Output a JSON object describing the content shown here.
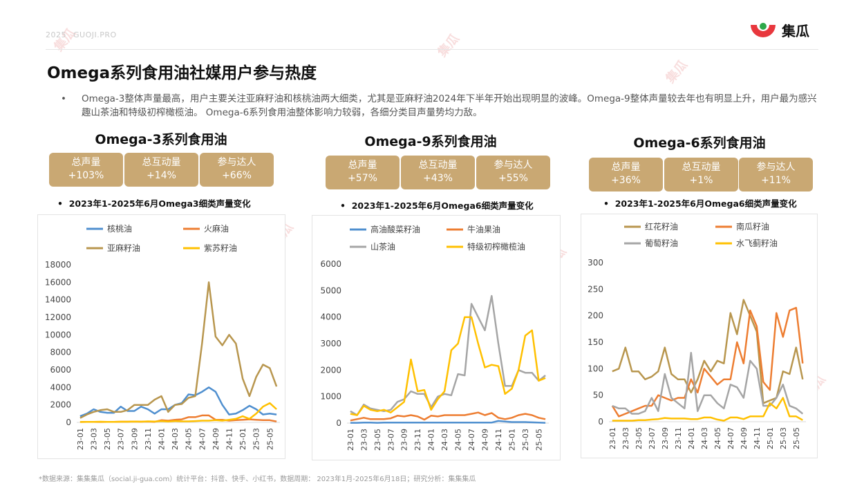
{
  "header": {
    "year": "2025",
    "site": "GUOJI.PRO",
    "logo_text": "集瓜",
    "watermark": "集瓜"
  },
  "page_title": "Omega系列食用油社媒用户参与热度",
  "summary": "Omega-3整体声量最高，用户主要关注亚麻籽油和核桃油两大细类，尤其是亚麻籽油2024年下半年开始出现明显的波峰。Omega-9整体声量较去年也有明显上升，用户最为感兴趣山茶油和特级初榨橄榄油。 Omega-6系列食用油整体影响力较弱，各细分类目声量势均力敌。",
  "columns": [
    {
      "title": "Omega-3系列食用油",
      "kpis": [
        {
          "label": "总声量",
          "value": "+103%"
        },
        {
          "label": "总互动量",
          "value": "+14%"
        },
        {
          "label": "参与达人",
          "value": "+66%"
        }
      ],
      "subtitle": "2023年1-2025年6月Omega3细类声量变化"
    },
    {
      "title": "Omega-9系列食用油",
      "kpis": [
        {
          "label": "总声量",
          "value": "+57%"
        },
        {
          "label": "总互动量",
          "value": "+43%"
        },
        {
          "label": "参与达人",
          "value": "+55%"
        }
      ],
      "subtitle": "2023年1-2025年6月Omega6细类声量变化"
    },
    {
      "title": "Omega-6系列食用油",
      "kpis": [
        {
          "label": "总声量",
          "value": "+36%"
        },
        {
          "label": "总互动量",
          "value": "+1%"
        },
        {
          "label": "参与达人",
          "value": "+11%"
        }
      ],
      "subtitle": "2023年1-2025年6月Omega6细类声量变化"
    }
  ],
  "footnote": "*数据来源：集集集瓜（social.ji-gua.com）统计平台：抖音、快手、小红书，数据周期： 2023年1月-2025年6月18日；研究分析：集集集瓜",
  "chart_data": [
    {
      "type": "line",
      "x": [
        "23-01",
        "23-02",
        "23-03",
        "23-04",
        "23-05",
        "23-06",
        "23-07",
        "23-08",
        "23-09",
        "23-10",
        "23-11",
        "23-12",
        "24-01",
        "24-02",
        "24-03",
        "24-04",
        "24-05",
        "24-06",
        "24-07",
        "24-08",
        "24-09",
        "24-10",
        "24-11",
        "24-12",
        "25-01",
        "25-02",
        "25-03",
        "25-04",
        "25-05",
        "25-06"
      ],
      "xticks": [
        "23-01",
        "23-03",
        "23-05",
        "23-07",
        "23-09",
        "23-11",
        "24-01",
        "24-03",
        "24-05",
        "24-07",
        "24-09",
        "24-11",
        "25-01",
        "25-03",
        "25-05"
      ],
      "ylim": [
        0,
        18000
      ],
      "yticks": [
        0,
        2000,
        4000,
        6000,
        8000,
        10000,
        12000,
        14000,
        16000,
        18000
      ],
      "series": [
        {
          "name": "核桃油",
          "color": "#4f8fcf",
          "values": [
            700,
            1000,
            1500,
            1200,
            1100,
            1100,
            1800,
            1300,
            1300,
            1800,
            1500,
            1000,
            1500,
            1500,
            2000,
            2200,
            3200,
            3100,
            3500,
            4000,
            3500,
            2000,
            900,
            1000,
            1400,
            1900,
            1500,
            900,
            1000,
            900
          ]
        },
        {
          "name": "火麻油",
          "color": "#ed7d31",
          "values": [
            50,
            60,
            60,
            50,
            60,
            60,
            80,
            80,
            100,
            80,
            100,
            60,
            250,
            200,
            300,
            350,
            600,
            600,
            800,
            800,
            300,
            300,
            200,
            250,
            300,
            350,
            300,
            250,
            250,
            100
          ]
        },
        {
          "name": "亚麻籽油",
          "color": "#b8964e",
          "values": [
            500,
            900,
            1200,
            1400,
            1500,
            1200,
            1200,
            1400,
            2000,
            2000,
            2000,
            2600,
            3000,
            1200,
            2000,
            2100,
            2800,
            3000,
            9000,
            16000,
            9800,
            8800,
            10000,
            9000,
            5000,
            3000,
            5200,
            6600,
            6200,
            4100
          ]
        },
        {
          "name": "紫苏籽油",
          "color": "#ffc000",
          "values": [
            50,
            60,
            60,
            80,
            60,
            60,
            80,
            80,
            100,
            80,
            120,
            100,
            150,
            100,
            150,
            120,
            120,
            150,
            200,
            200,
            250,
            200,
            300,
            400,
            700,
            400,
            1000,
            1800,
            2200,
            1500
          ]
        }
      ]
    },
    {
      "type": "line",
      "x": [
        "23-01",
        "23-02",
        "23-03",
        "23-04",
        "23-05",
        "23-06",
        "23-07",
        "23-08",
        "23-09",
        "23-10",
        "23-11",
        "23-12",
        "24-01",
        "24-02",
        "24-03",
        "24-04",
        "24-05",
        "24-06",
        "24-07",
        "24-08",
        "24-09",
        "24-10",
        "24-11",
        "24-12",
        "25-01",
        "25-02",
        "25-03",
        "25-04",
        "25-05",
        "25-06"
      ],
      "xticks": [
        "23-01",
        "23-03",
        "23-05",
        "23-07",
        "23-09",
        "23-11",
        "24-01",
        "24-03",
        "24-05",
        "24-07",
        "24-09",
        "24-11",
        "25-01",
        "25-03",
        "25-05"
      ],
      "ylim": [
        0,
        6000
      ],
      "yticks": [
        0,
        1000,
        2000,
        3000,
        4000,
        5000,
        6000
      ],
      "series": [
        {
          "name": "高油酸菜籽油",
          "color": "#4f8fcf",
          "values": [
            10,
            10,
            20,
            20,
            10,
            20,
            20,
            20,
            20,
            20,
            20,
            20,
            20,
            20,
            20,
            20,
            20,
            20,
            20,
            20,
            20,
            20,
            80,
            60,
            40,
            40,
            40,
            30,
            20,
            10
          ]
        },
        {
          "name": "牛油果油",
          "color": "#ed7d31",
          "values": [
            100,
            150,
            200,
            150,
            150,
            150,
            180,
            280,
            250,
            300,
            250,
            130,
            280,
            250,
            300,
            300,
            300,
            300,
            350,
            400,
            300,
            380,
            200,
            150,
            200,
            300,
            350,
            300,
            200,
            150
          ]
        },
        {
          "name": "山茶油",
          "color": "#a5a5a5",
          "values": [
            450,
            300,
            700,
            550,
            500,
            450,
            500,
            800,
            900,
            1200,
            1100,
            1100,
            600,
            1000,
            1100,
            1050,
            1850,
            1800,
            4500,
            4000,
            3500,
            4800,
            3000,
            1400,
            1400,
            2000,
            1900,
            1900,
            1600,
            1800
          ]
        },
        {
          "name": "特级初榨橄榄油",
          "color": "#ffc000",
          "values": [
            350,
            300,
            650,
            500,
            450,
            500,
            400,
            600,
            800,
            2400,
            1200,
            1250,
            500,
            900,
            1200,
            2750,
            3000,
            4000,
            4000,
            3000,
            2100,
            2200,
            2150,
            1100,
            1300,
            2000,
            3300,
            3500,
            1600,
            1700
          ]
        }
      ]
    },
    {
      "type": "line",
      "x": [
        "23-01",
        "23-02",
        "23-03",
        "23-04",
        "23-05",
        "23-06",
        "23-07",
        "23-08",
        "23-09",
        "23-10",
        "23-11",
        "23-12",
        "24-01",
        "24-02",
        "24-03",
        "24-04",
        "24-05",
        "24-06",
        "24-07",
        "24-08",
        "24-09",
        "24-10",
        "24-11",
        "24-12",
        "25-01",
        "25-02",
        "25-03",
        "25-04",
        "25-05",
        "25-06"
      ],
      "xticks": [
        "23-01",
        "23-03",
        "23-05",
        "23-07",
        "23-09",
        "23-11",
        "24-01",
        "24-03",
        "24-05",
        "24-07",
        "24-09",
        "24-11",
        "25-01",
        "25-03",
        "25-05"
      ],
      "ylim": [
        0,
        300
      ],
      "yticks": [
        0,
        50,
        100,
        150,
        200,
        250,
        300
      ],
      "series": [
        {
          "name": "红花籽油",
          "color": "#b8964e",
          "values": [
            95,
            100,
            140,
            95,
            95,
            80,
            85,
            95,
            140,
            90,
            80,
            80,
            55,
            80,
            115,
            95,
            115,
            110,
            205,
            165,
            230,
            200,
            170,
            35,
            40,
            45,
            95,
            90,
            140,
            80
          ]
        },
        {
          "name": "南瓜籽油",
          "color": "#ed7d31",
          "values": [
            30,
            10,
            15,
            20,
            25,
            30,
            30,
            50,
            45,
            40,
            45,
            45,
            80,
            55,
            100,
            85,
            70,
            80,
            80,
            150,
            110,
            210,
            180,
            75,
            60,
            205,
            160,
            210,
            215,
            110
          ]
        },
        {
          "name": "葡萄籽油",
          "color": "#a5a5a5",
          "values": [
            30,
            25,
            25,
            15,
            15,
            20,
            45,
            20,
            90,
            45,
            35,
            25,
            130,
            20,
            50,
            50,
            35,
            25,
            70,
            65,
            45,
            115,
            100,
            30,
            30,
            45,
            70,
            30,
            25,
            15
          ]
        },
        {
          "name": "水飞蓟籽油",
          "color": "#ffc000",
          "values": [
            2,
            2,
            2,
            2,
            3,
            3,
            4,
            5,
            7,
            6,
            6,
            6,
            5,
            5,
            8,
            8,
            4,
            2,
            8,
            8,
            5,
            10,
            10,
            10,
            35,
            25,
            45,
            10,
            10,
            3
          ]
        }
      ]
    }
  ]
}
